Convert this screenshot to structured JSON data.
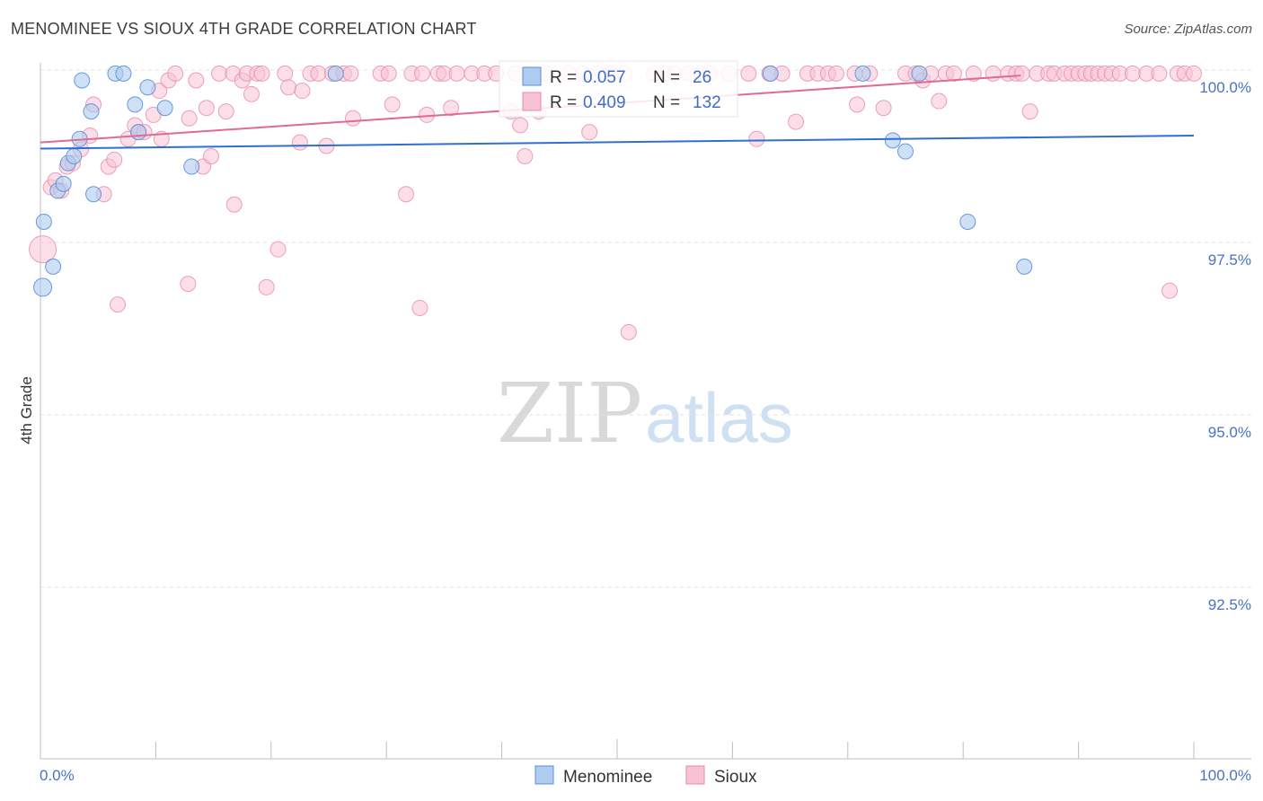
{
  "header": {
    "title": "MENOMINEE VS SIOUX 4TH GRADE CORRELATION CHART",
    "source": "Source: ZipAtlas.com"
  },
  "legend": {
    "r_label": "R = ",
    "n_label": "N = ",
    "menominee_r": "0.057",
    "menominee_n": "26",
    "sioux_r": "0.409",
    "sioux_n": "132"
  },
  "watermark": {
    "zip": "ZIP",
    "atlas": "atlas"
  },
  "chart_data": {
    "type": "scatter",
    "title": "MENOMINEE VS SIOUX 4TH GRADE CORRELATION CHART",
    "ylabel": "4th Grade",
    "xlabel": "",
    "xlim": [
      0,
      100
    ],
    "ylim": [
      90.0,
      100.4
    ],
    "x_tick_labels": [
      "0.0%",
      "100.0%"
    ],
    "y_ticks": [
      {
        "value": 100.0,
        "label": "100.0%"
      },
      {
        "value": 97.5,
        "label": "97.5%"
      },
      {
        "value": 95.0,
        "label": "95.0%"
      },
      {
        "value": 92.5,
        "label": "92.5%"
      }
    ],
    "grid": true,
    "legend_position": "top-center",
    "colors": {
      "menominee_fill": "#aecbf0",
      "menominee_stroke": "#5b8fd6",
      "menominee_line": "#2f6fd0",
      "sioux_fill": "#f7c3d3",
      "sioux_stroke": "#e98aaa",
      "sioux_line": "#e06a92"
    },
    "series": [
      {
        "name": "Menominee",
        "trend": [
          [
            0,
            98.86
          ],
          [
            100,
            99.05
          ]
        ],
        "points": [
          [
            0.2,
            96.85
          ],
          [
            0.3,
            97.8
          ],
          [
            1.1,
            97.15
          ],
          [
            1.5,
            98.25
          ],
          [
            2.0,
            98.35
          ],
          [
            2.4,
            98.65
          ],
          [
            2.9,
            98.75
          ],
          [
            3.4,
            99.0
          ],
          [
            3.6,
            99.85
          ],
          [
            4.4,
            99.4
          ],
          [
            4.6,
            98.2
          ],
          [
            6.5,
            99.95
          ],
          [
            7.2,
            99.95
          ],
          [
            8.2,
            99.5
          ],
          [
            8.5,
            99.1
          ],
          [
            9.3,
            99.75
          ],
          [
            10.8,
            99.45
          ],
          [
            13.1,
            98.6
          ],
          [
            25.6,
            99.95
          ],
          [
            63.3,
            99.95
          ],
          [
            71.3,
            99.95
          ],
          [
            73.9,
            98.98
          ],
          [
            75.0,
            98.82
          ],
          [
            76.2,
            99.95
          ],
          [
            80.4,
            97.8
          ],
          [
            85.3,
            97.15
          ]
        ]
      },
      {
        "name": "Sioux",
        "trend": [
          [
            0,
            98.95
          ],
          [
            85,
            99.92
          ]
        ],
        "points": [
          [
            0.2,
            97.4
          ],
          [
            0.9,
            98.3
          ],
          [
            1.3,
            98.4
          ],
          [
            1.8,
            98.25
          ],
          [
            2.3,
            98.6
          ],
          [
            2.8,
            98.65
          ],
          [
            3.5,
            98.85
          ],
          [
            4.3,
            99.05
          ],
          [
            4.6,
            99.5
          ],
          [
            5.5,
            98.2
          ],
          [
            5.9,
            98.6
          ],
          [
            6.4,
            98.7
          ],
          [
            6.7,
            96.6
          ],
          [
            7.6,
            99.0
          ],
          [
            8.2,
            99.2
          ],
          [
            8.5,
            99.1
          ],
          [
            9.0,
            99.1
          ],
          [
            9.8,
            99.35
          ],
          [
            10.3,
            99.7
          ],
          [
            10.5,
            99.0
          ],
          [
            11.1,
            99.85
          ],
          [
            11.7,
            99.95
          ],
          [
            12.8,
            96.9
          ],
          [
            12.9,
            99.3
          ],
          [
            13.5,
            99.85
          ],
          [
            14.1,
            98.6
          ],
          [
            14.4,
            99.45
          ],
          [
            14.8,
            98.75
          ],
          [
            15.5,
            99.95
          ],
          [
            16.1,
            99.4
          ],
          [
            16.7,
            99.95
          ],
          [
            16.8,
            98.05
          ],
          [
            17.5,
            99.85
          ],
          [
            17.9,
            99.95
          ],
          [
            18.3,
            99.65
          ],
          [
            18.8,
            99.95
          ],
          [
            19.2,
            99.95
          ],
          [
            19.6,
            96.85
          ],
          [
            20.6,
            97.4
          ],
          [
            21.2,
            99.95
          ],
          [
            21.5,
            99.75
          ],
          [
            22.5,
            98.95
          ],
          [
            22.7,
            99.7
          ],
          [
            23.4,
            99.95
          ],
          [
            24.1,
            99.95
          ],
          [
            24.8,
            98.9
          ],
          [
            25.3,
            99.95
          ],
          [
            26.3,
            99.95
          ],
          [
            26.9,
            99.95
          ],
          [
            27.1,
            99.3
          ],
          [
            29.5,
            99.95
          ],
          [
            30.2,
            99.95
          ],
          [
            30.5,
            99.5
          ],
          [
            31.7,
            98.2
          ],
          [
            32.2,
            99.95
          ],
          [
            32.9,
            96.55
          ],
          [
            33.1,
            99.95
          ],
          [
            33.5,
            99.35
          ],
          [
            34.5,
            99.95
          ],
          [
            35.0,
            99.95
          ],
          [
            35.6,
            99.45
          ],
          [
            36.1,
            99.95
          ],
          [
            37.4,
            99.95
          ],
          [
            38.5,
            99.95
          ],
          [
            39.5,
            99.95
          ],
          [
            40.8,
            99.4
          ],
          [
            41.2,
            99.95
          ],
          [
            41.6,
            99.2
          ],
          [
            42.0,
            98.75
          ],
          [
            42.4,
            99.95
          ],
          [
            43.2,
            99.4
          ],
          [
            43.8,
            99.95
          ],
          [
            45.8,
            99.95
          ],
          [
            47.0,
            99.95
          ],
          [
            47.6,
            99.1
          ],
          [
            48.3,
            99.95
          ],
          [
            49.5,
            99.95
          ],
          [
            50.6,
            99.95
          ],
          [
            51.0,
            96.2
          ],
          [
            53.2,
            99.95
          ],
          [
            54.2,
            99.95
          ],
          [
            55.0,
            99.95
          ],
          [
            56.2,
            99.95
          ],
          [
            57.3,
            99.95
          ],
          [
            58.0,
            99.95
          ],
          [
            59.7,
            99.95
          ],
          [
            61.4,
            99.95
          ],
          [
            62.1,
            99.0
          ],
          [
            63.2,
            99.95
          ],
          [
            64.3,
            99.95
          ],
          [
            65.5,
            99.25
          ],
          [
            66.5,
            99.95
          ],
          [
            67.4,
            99.95
          ],
          [
            68.3,
            99.95
          ],
          [
            69.0,
            99.95
          ],
          [
            70.6,
            99.95
          ],
          [
            70.8,
            99.5
          ],
          [
            71.9,
            99.95
          ],
          [
            73.1,
            99.45
          ],
          [
            75.0,
            99.95
          ],
          [
            75.9,
            99.95
          ],
          [
            76.5,
            99.85
          ],
          [
            77.2,
            99.95
          ],
          [
            77.9,
            99.55
          ],
          [
            78.5,
            99.95
          ],
          [
            79.2,
            99.95
          ],
          [
            80.9,
            99.95
          ],
          [
            82.6,
            99.95
          ],
          [
            83.9,
            99.95
          ],
          [
            84.6,
            99.95
          ],
          [
            85.1,
            99.95
          ],
          [
            85.8,
            99.4
          ],
          [
            86.4,
            99.95
          ],
          [
            87.4,
            99.95
          ],
          [
            87.9,
            99.95
          ],
          [
            88.8,
            99.95
          ],
          [
            89.4,
            99.95
          ],
          [
            90.0,
            99.95
          ],
          [
            90.6,
            99.95
          ],
          [
            91.1,
            99.95
          ],
          [
            91.7,
            99.95
          ],
          [
            92.3,
            99.95
          ],
          [
            92.9,
            99.95
          ],
          [
            93.6,
            99.95
          ],
          [
            94.7,
            99.95
          ],
          [
            95.9,
            99.95
          ],
          [
            97.0,
            99.95
          ],
          [
            97.9,
            96.8
          ],
          [
            98.6,
            99.95
          ],
          [
            99.2,
            99.95
          ],
          [
            100.0,
            99.95
          ]
        ]
      }
    ]
  },
  "bottom_legend": {
    "menominee": "Menominee",
    "sioux": "Sioux"
  }
}
